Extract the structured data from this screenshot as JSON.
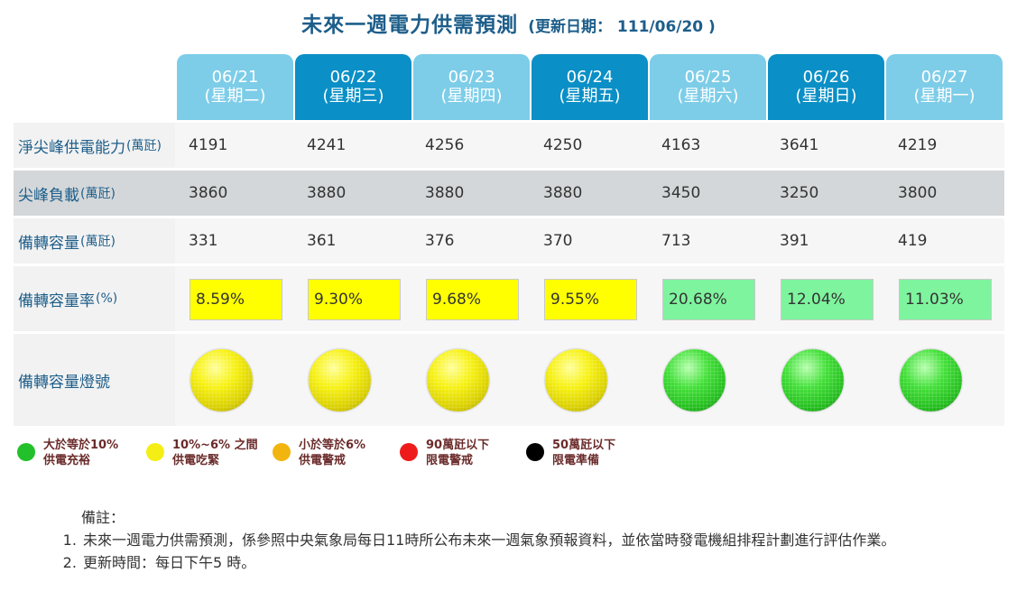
{
  "title": "未來一週電力供需預測",
  "updated": "(更新日期： 111/06/20 )",
  "days": [
    {
      "date": "06/21",
      "weekday": "(星期二)",
      "tone": "light"
    },
    {
      "date": "06/22",
      "weekday": "(星期三)",
      "tone": "dark"
    },
    {
      "date": "06/23",
      "weekday": "(星期四)",
      "tone": "light"
    },
    {
      "date": "06/24",
      "weekday": "(星期五)",
      "tone": "dark"
    },
    {
      "date": "06/25",
      "weekday": "(星期六)",
      "tone": "light"
    },
    {
      "date": "06/26",
      "weekday": "(星期日)",
      "tone": "dark"
    },
    {
      "date": "06/27",
      "weekday": "(星期一)",
      "tone": "light"
    }
  ],
  "rows": {
    "supply": {
      "label": "淨尖峰供電能力",
      "unit": "(萬瓩)",
      "values": [
        "4191",
        "4241",
        "4256",
        "4250",
        "4163",
        "3641",
        "4219"
      ]
    },
    "peak": {
      "label": "尖峰負載",
      "unit": "(萬瓩)",
      "values": [
        "3860",
        "3880",
        "3880",
        "3880",
        "3450",
        "3250",
        "3800"
      ]
    },
    "reserve": {
      "label": "備轉容量",
      "unit": "(萬瓩)",
      "values": [
        "331",
        "361",
        "376",
        "370",
        "713",
        "391",
        "419"
      ]
    },
    "rate": {
      "label": "備轉容量率",
      "unit": "(%)",
      "values": [
        "8.59%",
        "9.30%",
        "9.68%",
        "9.55%",
        "20.68%",
        "12.04%",
        "11.03%"
      ],
      "status": [
        "yellow",
        "yellow",
        "yellow",
        "yellow",
        "green",
        "green",
        "green"
      ]
    },
    "light": {
      "label": "備轉容量燈號",
      "lights": [
        "yellow",
        "yellow",
        "yellow",
        "yellow",
        "green",
        "green",
        "green"
      ]
    }
  },
  "colors": {
    "yellow": "#ffff00",
    "green": "#7ff49e",
    "header_light": "#7dcde8",
    "header_dark": "#0a8fc6"
  },
  "legend": [
    {
      "line1": "大於等於10%",
      "line2": "供電充裕",
      "color": "#22c12b"
    },
    {
      "line1": "10%~6% 之間",
      "line2": "供電吃緊",
      "color": "#f5ee15"
    },
    {
      "line1": "小於等於6%",
      "line2": "供電警戒",
      "color": "#f2b50f"
    },
    {
      "line1": "90萬瓩以下",
      "line2": "限電警戒",
      "color": "#ee1b1b"
    },
    {
      "line1": "50萬瓩以下",
      "line2": "限電準備",
      "color": "#000000"
    }
  ],
  "notes": {
    "heading": "備註：",
    "items": [
      "未來一週電力供需預測，係參照中央氣象局每日11時所公布未來一週氣象預報資料，並依當時發電機組排程計劃進行評估作業。",
      "更新時間：每日下午5 時。"
    ]
  }
}
